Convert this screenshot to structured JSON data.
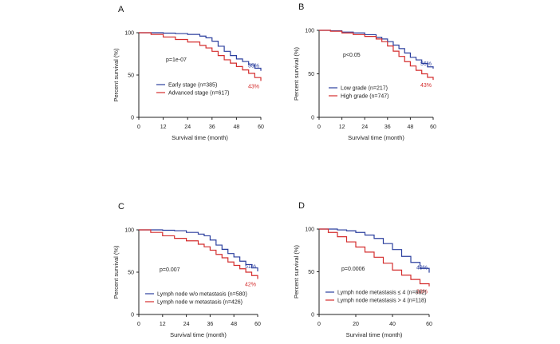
{
  "chart_data": [
    {
      "panel": "A",
      "type": "line",
      "subtype": "kaplan-meier",
      "xlabel": "Survival time (month)",
      "ylabel": "Percent survival (%)",
      "xlim": [
        0,
        60
      ],
      "ylim": [
        0,
        100
      ],
      "xticks": [
        "0",
        "12",
        "24",
        "36",
        "48",
        "60"
      ],
      "yticks": [
        "0",
        "50",
        "100"
      ],
      "pvalue": "p=1e-07",
      "legend_position": "center",
      "series": [
        {
          "name": "Early stage (n=385)",
          "color": "#2b3f9e",
          "end_label": "55%",
          "x": [
            0,
            6,
            12,
            18,
            24,
            30,
            33,
            36,
            39,
            42,
            45,
            48,
            51,
            54,
            57,
            60
          ],
          "y": [
            100,
            100,
            99.5,
            99,
            98,
            96,
            94,
            90,
            84,
            78,
            73,
            69,
            66,
            62,
            58,
            55
          ]
        },
        {
          "name": "Advanced stage (n=617)",
          "color": "#d42d2d",
          "end_label": "43%",
          "x": [
            0,
            6,
            12,
            18,
            24,
            30,
            33,
            36,
            39,
            42,
            45,
            48,
            51,
            54,
            57,
            60
          ],
          "y": [
            100,
            98,
            95,
            92,
            89,
            85,
            82,
            78,
            73,
            68,
            64,
            60,
            56,
            52,
            47,
            43
          ]
        }
      ]
    },
    {
      "panel": "B",
      "type": "line",
      "subtype": "kaplan-meier",
      "xlabel": "Survival time (month)",
      "ylabel": "Percent survival (%)",
      "xlim": [
        0,
        60
      ],
      "ylim": [
        0,
        100
      ],
      "xticks": [
        "0",
        "12",
        "24",
        "36",
        "48",
        "60"
      ],
      "yticks": [
        "0",
        "50",
        "100"
      ],
      "pvalue": "p<0.05",
      "legend_position": "center",
      "series": [
        {
          "name": "Low grade (n=217)",
          "color": "#2b3f9e",
          "end_label": "56%",
          "x": [
            0,
            6,
            12,
            18,
            24,
            30,
            33,
            36,
            39,
            42,
            45,
            48,
            51,
            54,
            57,
            60
          ],
          "y": [
            100,
            99.5,
            98,
            97,
            95,
            92,
            90,
            87,
            83,
            79,
            74,
            69,
            66,
            62,
            58,
            56
          ]
        },
        {
          "name": "High grade (n=747)",
          "color": "#d42d2d",
          "end_label": "43%",
          "x": [
            0,
            6,
            12,
            18,
            24,
            30,
            33,
            36,
            39,
            42,
            45,
            48,
            51,
            54,
            57,
            60
          ],
          "y": [
            100,
            99,
            97,
            95,
            93,
            90,
            87,
            82,
            76,
            70,
            64,
            59,
            54,
            50,
            46,
            43
          ]
        }
      ]
    },
    {
      "panel": "C",
      "type": "line",
      "subtype": "kaplan-meier",
      "xlabel": "Survival time (month)",
      "ylabel": "Percent survival (%)",
      "xlim": [
        0,
        60
      ],
      "ylim": [
        0,
        100
      ],
      "xticks": [
        "0",
        "12",
        "24",
        "36",
        "48",
        "60"
      ],
      "yticks": [
        "0",
        "50",
        "100"
      ],
      "pvalue": "p=0.007",
      "legend_position": "bottom-left",
      "series": [
        {
          "name": "Lymph node w/o metastasis (n=580)",
          "color": "#2b3f9e",
          "end_label": "51%",
          "x": [
            0,
            6,
            12,
            18,
            24,
            30,
            33,
            36,
            39,
            42,
            45,
            48,
            51,
            54,
            57,
            60
          ],
          "y": [
            100,
            100,
            99.5,
            99,
            97,
            95,
            93,
            88,
            82,
            77,
            72,
            68,
            63,
            59,
            55,
            51
          ]
        },
        {
          "name": "Lymph node w metastasis (n=426)",
          "color": "#d42d2d",
          "end_label": "42%",
          "x": [
            0,
            6,
            12,
            18,
            24,
            30,
            33,
            36,
            39,
            42,
            45,
            48,
            51,
            54,
            57,
            60
          ],
          "y": [
            100,
            97,
            93,
            90,
            87,
            83,
            80,
            76,
            71,
            67,
            62,
            58,
            54,
            50,
            46,
            42
          ]
        }
      ]
    },
    {
      "panel": "D",
      "type": "line",
      "subtype": "kaplan-meier",
      "xlabel": "Survival time (month)",
      "ylabel": "Percent survival (%)",
      "xlim": [
        0,
        60
      ],
      "ylim": [
        0,
        100
      ],
      "xticks": [
        "0",
        "20",
        "40",
        "60"
      ],
      "yticks": [
        "0",
        "50",
        "100"
      ],
      "pvalue": "p=0.0006",
      "legend_position": "bottom-left",
      "series": [
        {
          "name": "Lymph node metastasis ≤ 4 (n=882)",
          "color": "#2b3f9e",
          "end_label": "49%",
          "x": [
            0,
            5,
            10,
            15,
            20,
            25,
            30,
            35,
            40,
            45,
            50,
            55,
            60
          ],
          "y": [
            100,
            100,
            99,
            98,
            96,
            93,
            89,
            83,
            76,
            68,
            61,
            54,
            49
          ]
        },
        {
          "name": "Lymph node metastasis > 4 (n=118)",
          "color": "#d42d2d",
          "end_label": "33%",
          "x": [
            0,
            5,
            10,
            15,
            20,
            25,
            30,
            35,
            40,
            45,
            50,
            55,
            60
          ],
          "y": [
            100,
            96,
            91,
            85,
            79,
            73,
            67,
            60,
            52,
            46,
            41,
            36,
            33
          ]
        }
      ]
    }
  ]
}
